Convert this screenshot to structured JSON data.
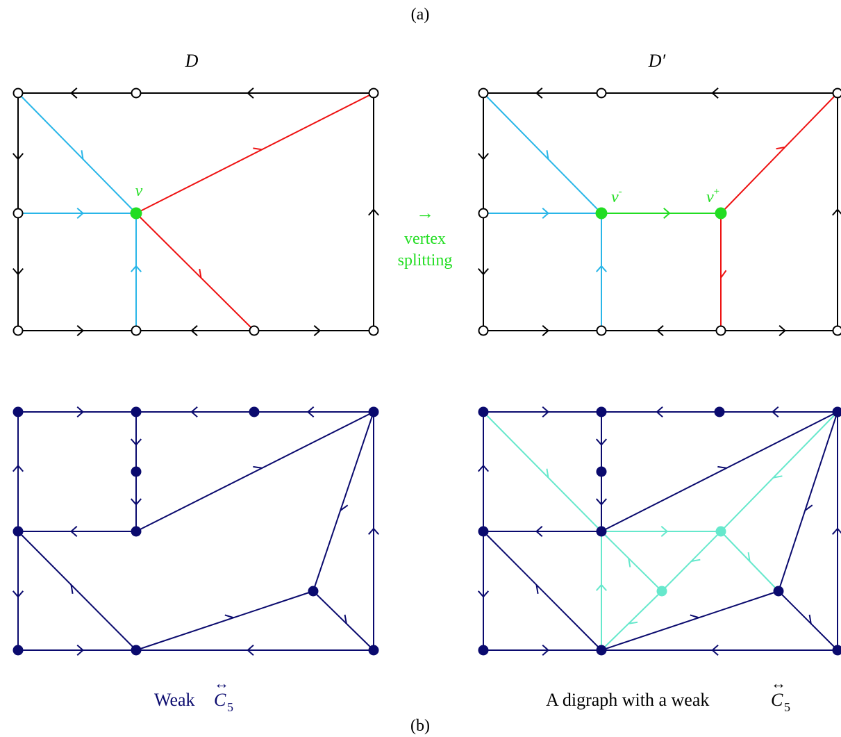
{
  "labels": {
    "part_a": "(a)",
    "part_b": "(b)",
    "graph_d": "D",
    "graph_d_prime": "D′",
    "vertex_v": "v",
    "vertex_v_minus": "v",
    "v_minus_sup": "-",
    "vertex_v_plus": "v",
    "v_plus_sup": "+",
    "arrow_symbol": "→",
    "op_line1": "vertex",
    "op_line2": "splitting",
    "weak_prefix": "Weak",
    "digraph_prefix": "A digraph with a weak",
    "cycle_letter": "C",
    "cycle_sub": "5",
    "cycle_over": "↔"
  },
  "colors": {
    "black": "#000000",
    "cyan": "#29b6e8",
    "red": "#ee1111",
    "green": "#22dd22",
    "navy": "#0a0a6e",
    "aqua": "#66e8cc"
  }
}
